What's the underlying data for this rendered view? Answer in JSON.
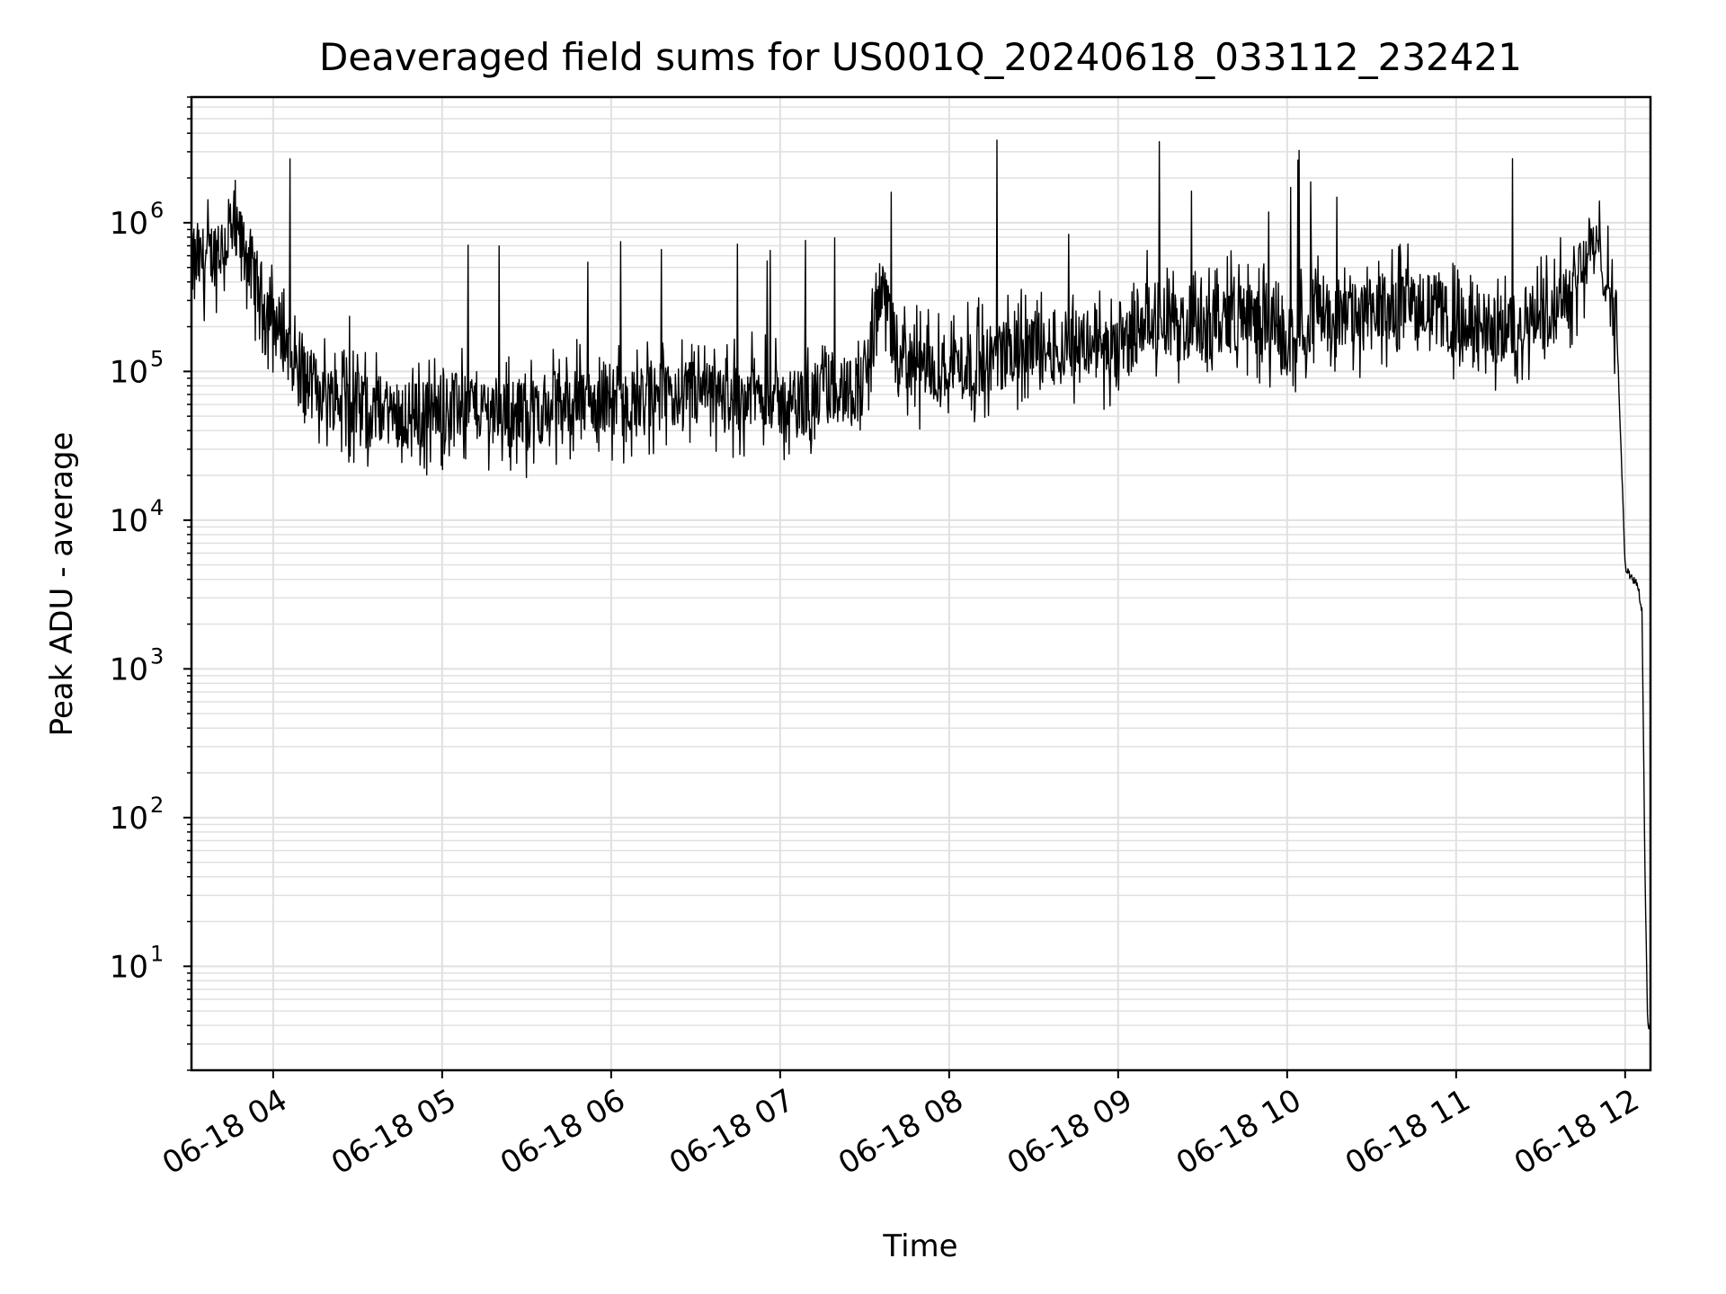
{
  "chart_data": {
    "type": "line",
    "title": "Deaveraged field sums for US001Q_20240618_033112_232421",
    "xlabel": "Time",
    "ylabel": "Peak ADU - average",
    "y_scale": "log",
    "ylim": [
      2,
      7000000
    ],
    "xlim": [
      "06-18 03:31",
      "06-18 12:09"
    ],
    "x_tick_labels": [
      "06-18 04",
      "06-18 05",
      "06-18 06",
      "06-18 07",
      "06-18 08",
      "06-18 09",
      "06-18 10",
      "06-18 11",
      "06-18 12"
    ],
    "y_tick_labels": [
      {
        "base": "10",
        "exp": "1",
        "value": 10
      },
      {
        "base": "10",
        "exp": "2",
        "value": 100
      },
      {
        "base": "10",
        "exp": "3",
        "value": 1000
      },
      {
        "base": "10",
        "exp": "4",
        "value": 10000
      },
      {
        "base": "10",
        "exp": "5",
        "value": 100000
      },
      {
        "base": "10",
        "exp": "6",
        "value": 1000000
      }
    ],
    "grid": true,
    "line_color": "#000000",
    "grid_color": "#e0e0e0",
    "series": [
      {
        "x": [
          "03:31",
          "03:40",
          "03:45",
          "03:50",
          "03:55",
          "04:05",
          "04:10",
          "04:20",
          "04:30",
          "04:40",
          "04:50",
          "05:00",
          "05:10",
          "05:20",
          "05:30",
          "05:40",
          "05:50",
          "05:56",
          "06:00",
          "06:10",
          "06:20",
          "06:30",
          "06:40",
          "06:50",
          "06:55",
          "07:00",
          "07:10",
          "07:20",
          "07:30",
          "07:36",
          "07:40",
          "07:50",
          "08:00",
          "08:10",
          "08:20",
          "08:30",
          "08:40",
          "08:50",
          "09:00",
          "09:10",
          "09:20",
          "09:30",
          "09:40",
          "09:50",
          "10:00",
          "10:10",
          "10:20",
          "10:30",
          "10:40",
          "10:50",
          "11:00",
          "11:10",
          "11:20",
          "11:30",
          "11:40",
          "11:48",
          "11:53",
          "11:57",
          "12:00",
          "12:01",
          "12:04",
          "12:06",
          "12:07",
          "12:08",
          "12:09"
        ],
        "y": [
          500000,
          650000,
          800000,
          700000,
          350000,
          150000,
          90000,
          70000,
          60000,
          55000,
          50000,
          55000,
          60000,
          55000,
          50000,
          60000,
          65000,
          60000,
          65000,
          60000,
          65000,
          70000,
          65000,
          70000,
          75000,
          60000,
          65000,
          75000,
          80000,
          400000,
          150000,
          100000,
          110000,
          120000,
          130000,
          140000,
          150000,
          160000,
          120000,
          250000,
          200000,
          180000,
          250000,
          220000,
          150000,
          250000,
          220000,
          250000,
          300000,
          280000,
          200000,
          180000,
          200000,
          250000,
          350000,
          700000,
          500000,
          200000,
          5000,
          4500,
          3800,
          2500,
          50,
          4,
          4
        ]
      }
    ]
  }
}
